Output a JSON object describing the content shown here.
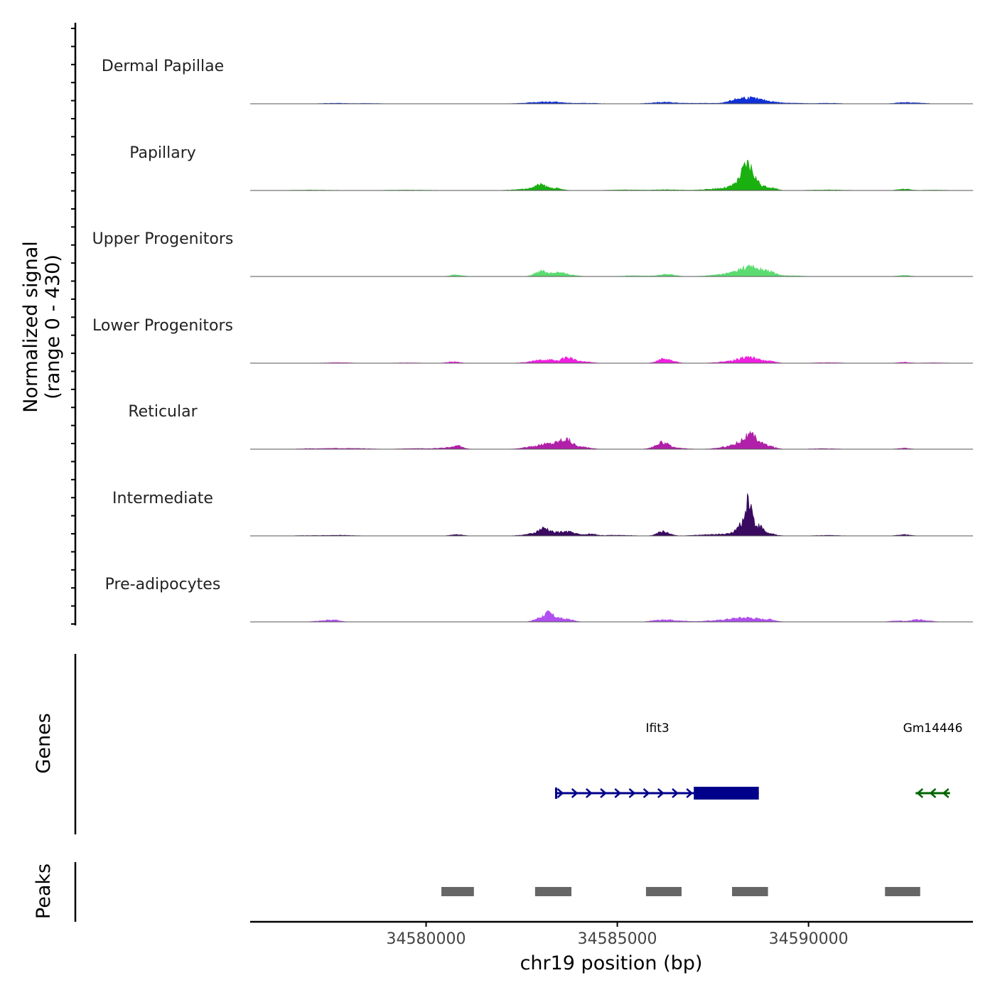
{
  "chart_data": {
    "type": "area",
    "title": "",
    "ylabel_line1": "Normalized signal",
    "ylabel_line2": "(range 0 - 430)",
    "signal_range": [
      0,
      430
    ],
    "xlabel": "chr19 position (bp)",
    "xlim": [
      34575400,
      34594300
    ],
    "x_ticks": [
      34580000,
      34585000,
      34590000
    ],
    "x_tick_labels": [
      "34580000",
      "34585000",
      "34590000"
    ],
    "region_start": 34576200,
    "region_end": 34593800,
    "tracks": [
      {
        "name": "Dermal Papillae",
        "color": "#1030d8",
        "peaks": [
          [
            34577600,
            3,
            300
          ],
          [
            34578500,
            2,
            300
          ],
          [
            34582900,
            5,
            400
          ],
          [
            34583300,
            7,
            300
          ],
          [
            34584200,
            3,
            300
          ],
          [
            34586200,
            8,
            300
          ],
          [
            34587200,
            3,
            400
          ],
          [
            34588100,
            17,
            200
          ],
          [
            34588400,
            22,
            200
          ],
          [
            34588700,
            14,
            200
          ],
          [
            34589000,
            8,
            200
          ],
          [
            34589500,
            4,
            300
          ],
          [
            34590500,
            3,
            300
          ],
          [
            34592500,
            7,
            200
          ],
          [
            34592900,
            3,
            200
          ]
        ]
      },
      {
        "name": "Papillary",
        "color": "#1ab010",
        "peaks": [
          [
            34577000,
            2,
            500
          ],
          [
            34579500,
            2,
            600
          ],
          [
            34582700,
            8,
            350
          ],
          [
            34583000,
            25,
            150
          ],
          [
            34583400,
            10,
            150
          ],
          [
            34585200,
            3,
            400
          ],
          [
            34586300,
            4,
            300
          ],
          [
            34587500,
            3,
            400
          ],
          [
            34588000,
            12,
            400
          ],
          [
            34588300,
            40,
            200
          ],
          [
            34588400,
            80,
            130
          ],
          [
            34588600,
            35,
            160
          ],
          [
            34589000,
            15,
            150
          ],
          [
            34590500,
            3,
            400
          ],
          [
            34592500,
            8,
            150
          ],
          [
            34593300,
            2,
            300
          ]
        ]
      },
      {
        "name": "Upper Progenitors",
        "color": "#5cdc70",
        "peaks": [
          [
            34580800,
            8,
            150
          ],
          [
            34583000,
            30,
            150
          ],
          [
            34583400,
            18,
            150
          ],
          [
            34583700,
            10,
            200
          ],
          [
            34585500,
            4,
            300
          ],
          [
            34586300,
            11,
            200
          ],
          [
            34588000,
            15,
            400
          ],
          [
            34588400,
            36,
            230
          ],
          [
            34588700,
            20,
            200
          ],
          [
            34589000,
            18,
            150
          ],
          [
            34589500,
            4,
            300
          ],
          [
            34592500,
            6,
            150
          ]
        ]
      },
      {
        "name": "Lower Progenitors",
        "color": "#f020e0",
        "peaks": [
          [
            34577700,
            3,
            300
          ],
          [
            34579500,
            2,
            300
          ],
          [
            34580700,
            8,
            150
          ],
          [
            34582900,
            10,
            250
          ],
          [
            34583200,
            14,
            200
          ],
          [
            34583700,
            30,
            150
          ],
          [
            34584100,
            8,
            200
          ],
          [
            34586200,
            20,
            150
          ],
          [
            34586400,
            10,
            150
          ],
          [
            34588000,
            10,
            300
          ],
          [
            34588400,
            26,
            200
          ],
          [
            34588700,
            10,
            200
          ],
          [
            34589000,
            8,
            150
          ],
          [
            34590500,
            3,
            300
          ],
          [
            34592500,
            5,
            150
          ],
          [
            34593300,
            2,
            300
          ]
        ]
      },
      {
        "name": "Reticular",
        "color": "#b020a8",
        "peaks": [
          [
            34577000,
            3,
            300
          ],
          [
            34577700,
            4,
            300
          ],
          [
            34578300,
            3,
            300
          ],
          [
            34579700,
            4,
            300
          ],
          [
            34580400,
            5,
            200
          ],
          [
            34580800,
            18,
            150
          ],
          [
            34582800,
            12,
            250
          ],
          [
            34583200,
            24,
            200
          ],
          [
            34583500,
            22,
            150
          ],
          [
            34583700,
            42,
            150
          ],
          [
            34584100,
            10,
            200
          ],
          [
            34586000,
            8,
            150
          ],
          [
            34586200,
            32,
            150
          ],
          [
            34586600,
            5,
            200
          ],
          [
            34588000,
            14,
            300
          ],
          [
            34588300,
            26,
            200
          ],
          [
            34588500,
            44,
            170
          ],
          [
            34588700,
            20,
            200
          ],
          [
            34589000,
            10,
            150
          ],
          [
            34590400,
            3,
            300
          ],
          [
            34592500,
            5,
            150
          ]
        ]
      },
      {
        "name": "Intermediate",
        "color": "#3a0a60",
        "peaks": [
          [
            34577000,
            2,
            400
          ],
          [
            34577800,
            3,
            300
          ],
          [
            34580800,
            8,
            150
          ],
          [
            34582800,
            10,
            250
          ],
          [
            34583100,
            35,
            150
          ],
          [
            34583500,
            18,
            150
          ],
          [
            34583800,
            18,
            150
          ],
          [
            34584300,
            10,
            150
          ],
          [
            34585000,
            4,
            300
          ],
          [
            34586200,
            24,
            150
          ],
          [
            34587200,
            3,
            300
          ],
          [
            34587900,
            10,
            400
          ],
          [
            34588300,
            60,
            150
          ],
          [
            34588450,
            150,
            80
          ],
          [
            34588700,
            50,
            120
          ],
          [
            34589000,
            10,
            150
          ],
          [
            34590500,
            3,
            300
          ],
          [
            34592500,
            7,
            150
          ]
        ]
      },
      {
        "name": "Pre-adipocytes",
        "color": "#b050f0",
        "peaks": [
          [
            34577300,
            6,
            200
          ],
          [
            34577600,
            8,
            150
          ],
          [
            34583000,
            22,
            150
          ],
          [
            34583200,
            35,
            100
          ],
          [
            34583400,
            20,
            120
          ],
          [
            34583700,
            14,
            150
          ],
          [
            34586000,
            7,
            150
          ],
          [
            34586300,
            10,
            150
          ],
          [
            34586700,
            5,
            200
          ],
          [
            34587400,
            5,
            200
          ],
          [
            34587800,
            8,
            200
          ],
          [
            34588100,
            12,
            200
          ],
          [
            34588400,
            16,
            200
          ],
          [
            34588700,
            10,
            200
          ],
          [
            34589000,
            10,
            150
          ],
          [
            34592300,
            6,
            150
          ],
          [
            34592800,
            10,
            150
          ],
          [
            34593100,
            6,
            150
          ]
        ]
      }
    ],
    "genes": [
      {
        "name": "Ifit3",
        "strand": "+",
        "color": "#00008b",
        "start": 34583400,
        "end": 34588700,
        "exon_start": 34587000,
        "exon_end": 34588700
      },
      {
        "name": "Gm14446",
        "strand": "-",
        "color": "#006400",
        "start": 34592800,
        "end": 34593700
      }
    ],
    "peaks_track_label": "Peaks",
    "genes_track_label": "Genes",
    "peak_color": "#666666",
    "peak_regions": [
      [
        34580400,
        34581250
      ],
      [
        34582850,
        34583800
      ],
      [
        34585750,
        34586680
      ],
      [
        34588000,
        34588940
      ],
      [
        34592000,
        34592920
      ]
    ]
  }
}
